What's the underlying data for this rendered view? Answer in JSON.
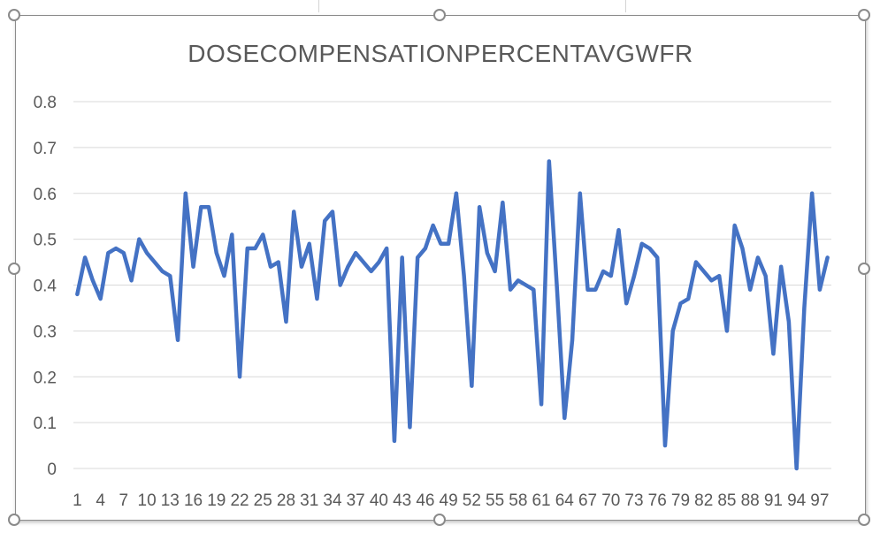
{
  "chart_data": {
    "type": "line",
    "title": "DOSECOMPENSATIONPERCENTAVGWFR",
    "xlabel": "",
    "ylabel": "",
    "ylim": [
      0,
      0.8
    ],
    "yticks": [
      0,
      0.1,
      0.2,
      0.3,
      0.4,
      0.5,
      0.6,
      0.7,
      0.8
    ],
    "xtick_labels": [
      "1",
      "4",
      "7",
      "10",
      "13",
      "16",
      "19",
      "22",
      "25",
      "28",
      "31",
      "34",
      "37",
      "40",
      "43",
      "46",
      "49",
      "52",
      "55",
      "58",
      "61",
      "64",
      "67",
      "70",
      "73",
      "76",
      "79",
      "82",
      "85",
      "88",
      "91",
      "94",
      "97"
    ],
    "grid": "horizontal",
    "legend": "none",
    "color": "#4472C4",
    "series": [
      {
        "values": [
          0.38,
          0.46,
          0.41,
          0.37,
          0.47,
          0.48,
          0.47,
          0.41,
          0.5,
          0.47,
          0.45,
          0.43,
          0.42,
          0.28,
          0.6,
          0.44,
          0.57,
          0.57,
          0.47,
          0.42,
          0.51,
          0.2,
          0.48,
          0.48,
          0.51,
          0.44,
          0.45,
          0.32,
          0.56,
          0.44,
          0.49,
          0.37,
          0.54,
          0.56,
          0.4,
          0.44,
          0.47,
          0.45,
          0.43,
          0.45,
          0.48,
          0.06,
          0.46,
          0.09,
          0.46,
          0.48,
          0.53,
          0.49,
          0.49,
          0.6,
          0.42,
          0.18,
          0.57,
          0.47,
          0.43,
          0.58,
          0.39,
          0.41,
          0.4,
          0.39,
          0.14,
          0.67,
          0.4,
          0.11,
          0.28,
          0.6,
          0.39,
          0.39,
          0.43,
          0.42,
          0.52,
          0.36,
          0.42,
          0.49,
          0.48,
          0.46,
          0.05,
          0.3,
          0.36,
          0.37,
          0.45,
          0.43,
          0.41,
          0.42,
          0.3,
          0.53,
          0.48,
          0.39,
          0.46,
          0.42,
          0.25,
          0.44,
          0.32,
          0.0,
          0.35,
          0.6,
          0.39,
          0.46
        ]
      }
    ]
  }
}
